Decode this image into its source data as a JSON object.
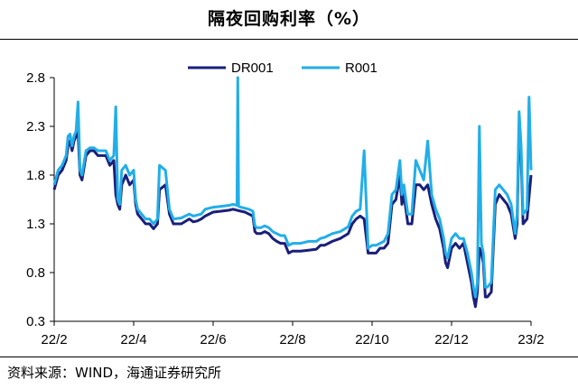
{
  "title": "隔夜回购利率（%）",
  "source": "资料来源：WIND，海通证券研究所",
  "colors": {
    "DR001": "#1a1f7a",
    "R001": "#22aee8"
  },
  "chart_data": {
    "type": "line",
    "title": "隔夜回购利率（%）",
    "xlabel": "",
    "ylabel": "",
    "ylim": [
      0.3,
      2.8
    ],
    "xlim": [
      0,
      12.0
    ],
    "yticks": [
      "0.3",
      "0.8",
      "1.3",
      "1.8",
      "2.3",
      "2.8"
    ],
    "xticks": [
      {
        "label": "22/2",
        "x": 0
      },
      {
        "label": "22/4",
        "x": 2
      },
      {
        "label": "22/6",
        "x": 4
      },
      {
        "label": "22/8",
        "x": 6
      },
      {
        "label": "22/10",
        "x": 8
      },
      {
        "label": "22/12",
        "x": 10
      },
      {
        "label": "23/2",
        "x": 12
      }
    ],
    "legend": [
      "DR001",
      "R001"
    ],
    "series": [
      {
        "name": "DR001",
        "color": "#1a1f7a",
        "points": [
          [
            0.0,
            1.65
          ],
          [
            0.1,
            1.8
          ],
          [
            0.2,
            1.85
          ],
          [
            0.3,
            1.95
          ],
          [
            0.35,
            2.1
          ],
          [
            0.4,
            2.15
          ],
          [
            0.45,
            2.05
          ],
          [
            0.5,
            2.15
          ],
          [
            0.55,
            2.2
          ],
          [
            0.6,
            2.25
          ],
          [
            0.65,
            1.8
          ],
          [
            0.7,
            1.75
          ],
          [
            0.8,
            2.0
          ],
          [
            0.9,
            2.05
          ],
          [
            1.0,
            2.05
          ],
          [
            1.1,
            2.0
          ],
          [
            1.2,
            2.0
          ],
          [
            1.3,
            2.0
          ],
          [
            1.4,
            1.9
          ],
          [
            1.5,
            1.95
          ],
          [
            1.55,
            1.6
          ],
          [
            1.6,
            1.5
          ],
          [
            1.65,
            1.45
          ],
          [
            1.7,
            1.7
          ],
          [
            1.8,
            1.8
          ],
          [
            1.9,
            1.7
          ],
          [
            2.0,
            1.75
          ],
          [
            2.05,
            1.5
          ],
          [
            2.1,
            1.4
          ],
          [
            2.2,
            1.35
          ],
          [
            2.3,
            1.3
          ],
          [
            2.4,
            1.3
          ],
          [
            2.5,
            1.25
          ],
          [
            2.6,
            1.3
          ],
          [
            2.65,
            1.65
          ],
          [
            2.8,
            1.7
          ],
          [
            2.9,
            1.4
          ],
          [
            3.0,
            1.3
          ],
          [
            3.2,
            1.3
          ],
          [
            3.4,
            1.35
          ],
          [
            3.5,
            1.32
          ],
          [
            3.6,
            1.33
          ],
          [
            3.7,
            1.35
          ],
          [
            3.8,
            1.38
          ],
          [
            4.0,
            1.42
          ],
          [
            4.2,
            1.43
          ],
          [
            4.4,
            1.44
          ],
          [
            4.5,
            1.45
          ],
          [
            4.6,
            1.44
          ],
          [
            4.7,
            1.43
          ],
          [
            4.8,
            1.42
          ],
          [
            4.9,
            1.4
          ],
          [
            5.0,
            1.38
          ],
          [
            5.05,
            1.22
          ],
          [
            5.1,
            1.2
          ],
          [
            5.2,
            1.2
          ],
          [
            5.3,
            1.22
          ],
          [
            5.4,
            1.2
          ],
          [
            5.5,
            1.15
          ],
          [
            5.6,
            1.12
          ],
          [
            5.7,
            1.1
          ],
          [
            5.8,
            1.1
          ],
          [
            5.9,
            1.0
          ],
          [
            6.0,
            1.02
          ],
          [
            6.2,
            1.02
          ],
          [
            6.4,
            1.03
          ],
          [
            6.6,
            1.04
          ],
          [
            6.7,
            1.08
          ],
          [
            6.8,
            1.08
          ],
          [
            6.9,
            1.1
          ],
          [
            7.0,
            1.12
          ],
          [
            7.2,
            1.15
          ],
          [
            7.4,
            1.2
          ],
          [
            7.5,
            1.3
          ],
          [
            7.6,
            1.35
          ],
          [
            7.7,
            1.38
          ],
          [
            7.8,
            1.35
          ],
          [
            7.9,
            1.0
          ],
          [
            8.0,
            1.0
          ],
          [
            8.1,
            1.0
          ],
          [
            8.2,
            1.05
          ],
          [
            8.3,
            1.05
          ],
          [
            8.4,
            1.1
          ],
          [
            8.5,
            1.5
          ],
          [
            8.6,
            1.55
          ],
          [
            8.7,
            1.8
          ],
          [
            8.75,
            1.5
          ],
          [
            8.8,
            1.6
          ],
          [
            8.9,
            1.3
          ],
          [
            9.0,
            1.3
          ],
          [
            9.1,
            1.7
          ],
          [
            9.2,
            1.7
          ],
          [
            9.3,
            1.65
          ],
          [
            9.4,
            1.7
          ],
          [
            9.5,
            1.5
          ],
          [
            9.6,
            1.35
          ],
          [
            9.7,
            1.25
          ],
          [
            9.8,
            1.05
          ],
          [
            9.85,
            0.9
          ],
          [
            9.9,
            0.85
          ],
          [
            10.0,
            1.05
          ],
          [
            10.1,
            1.1
          ],
          [
            10.2,
            1.05
          ],
          [
            10.3,
            1.1
          ],
          [
            10.4,
            0.9
          ],
          [
            10.5,
            0.7
          ],
          [
            10.55,
            0.55
          ],
          [
            10.6,
            0.45
          ],
          [
            10.65,
            0.6
          ],
          [
            10.7,
            1.05
          ],
          [
            10.75,
            1.0
          ],
          [
            10.8,
            0.9
          ],
          [
            10.85,
            0.55
          ],
          [
            10.9,
            0.55
          ],
          [
            11.0,
            0.6
          ],
          [
            11.1,
            1.5
          ],
          [
            11.2,
            1.6
          ],
          [
            11.3,
            1.55
          ],
          [
            11.4,
            1.5
          ],
          [
            11.5,
            1.4
          ],
          [
            11.6,
            1.15
          ],
          [
            11.65,
            1.3
          ],
          [
            11.7,
            2.3
          ],
          [
            11.75,
            2.0
          ],
          [
            11.8,
            1.3
          ],
          [
            11.9,
            1.35
          ],
          [
            12.0,
            1.8
          ]
        ]
      },
      {
        "name": "R001",
        "color": "#22aee8",
        "points": [
          [
            0.0,
            1.7
          ],
          [
            0.1,
            1.85
          ],
          [
            0.2,
            1.9
          ],
          [
            0.3,
            2.0
          ],
          [
            0.35,
            2.2
          ],
          [
            0.4,
            2.22
          ],
          [
            0.45,
            2.1
          ],
          [
            0.5,
            2.2
          ],
          [
            0.55,
            2.25
          ],
          [
            0.6,
            2.55
          ],
          [
            0.65,
            1.85
          ],
          [
            0.7,
            1.8
          ],
          [
            0.8,
            2.05
          ],
          [
            0.9,
            2.08
          ],
          [
            1.0,
            2.08
          ],
          [
            1.1,
            2.05
          ],
          [
            1.2,
            2.05
          ],
          [
            1.3,
            2.05
          ],
          [
            1.4,
            1.95
          ],
          [
            1.5,
            2.0
          ],
          [
            1.55,
            2.5
          ],
          [
            1.6,
            1.55
          ],
          [
            1.65,
            1.5
          ],
          [
            1.7,
            1.85
          ],
          [
            1.8,
            1.9
          ],
          [
            1.9,
            1.8
          ],
          [
            2.0,
            1.85
          ],
          [
            2.05,
            1.55
          ],
          [
            2.1,
            1.45
          ],
          [
            2.2,
            1.4
          ],
          [
            2.3,
            1.35
          ],
          [
            2.4,
            1.35
          ],
          [
            2.5,
            1.3
          ],
          [
            2.6,
            1.35
          ],
          [
            2.65,
            1.9
          ],
          [
            2.8,
            1.85
          ],
          [
            2.9,
            1.45
          ],
          [
            3.0,
            1.35
          ],
          [
            3.2,
            1.36
          ],
          [
            3.4,
            1.4
          ],
          [
            3.5,
            1.38
          ],
          [
            3.6,
            1.39
          ],
          [
            3.7,
            1.4
          ],
          [
            3.8,
            1.45
          ],
          [
            4.0,
            1.47
          ],
          [
            4.2,
            1.48
          ],
          [
            4.4,
            1.49
          ],
          [
            4.5,
            1.5
          ],
          [
            4.6,
            1.49
          ],
          [
            4.62,
            2.8
          ],
          [
            4.64,
            1.48
          ],
          [
            4.7,
            1.47
          ],
          [
            4.8,
            1.46
          ],
          [
            4.9,
            1.45
          ],
          [
            5.0,
            1.43
          ],
          [
            5.05,
            1.28
          ],
          [
            5.1,
            1.26
          ],
          [
            5.2,
            1.26
          ],
          [
            5.3,
            1.28
          ],
          [
            5.4,
            1.26
          ],
          [
            5.5,
            1.22
          ],
          [
            5.6,
            1.2
          ],
          [
            5.7,
            1.18
          ],
          [
            5.8,
            1.18
          ],
          [
            5.9,
            1.08
          ],
          [
            6.0,
            1.1
          ],
          [
            6.2,
            1.1
          ],
          [
            6.4,
            1.12
          ],
          [
            6.6,
            1.12
          ],
          [
            6.7,
            1.15
          ],
          [
            6.8,
            1.16
          ],
          [
            6.9,
            1.18
          ],
          [
            7.0,
            1.2
          ],
          [
            7.2,
            1.22
          ],
          [
            7.4,
            1.27
          ],
          [
            7.5,
            1.38
          ],
          [
            7.6,
            1.43
          ],
          [
            7.7,
            1.45
          ],
          [
            7.8,
            2.05
          ],
          [
            7.9,
            1.05
          ],
          [
            8.0,
            1.08
          ],
          [
            8.1,
            1.08
          ],
          [
            8.2,
            1.1
          ],
          [
            8.3,
            1.12
          ],
          [
            8.4,
            1.2
          ],
          [
            8.5,
            1.6
          ],
          [
            8.6,
            1.65
          ],
          [
            8.7,
            1.95
          ],
          [
            8.75,
            1.6
          ],
          [
            8.8,
            1.7
          ],
          [
            8.9,
            1.4
          ],
          [
            9.0,
            1.4
          ],
          [
            9.1,
            1.95
          ],
          [
            9.2,
            1.85
          ],
          [
            9.3,
            1.75
          ],
          [
            9.4,
            2.15
          ],
          [
            9.5,
            1.6
          ],
          [
            9.6,
            1.45
          ],
          [
            9.7,
            1.35
          ],
          [
            9.8,
            1.15
          ],
          [
            9.85,
            1.0
          ],
          [
            9.9,
            0.95
          ],
          [
            10.0,
            1.15
          ],
          [
            10.1,
            1.2
          ],
          [
            10.2,
            1.15
          ],
          [
            10.3,
            1.15
          ],
          [
            10.4,
            1.0
          ],
          [
            10.5,
            0.8
          ],
          [
            10.55,
            0.65
          ],
          [
            10.6,
            0.55
          ],
          [
            10.65,
            0.7
          ],
          [
            10.7,
            2.3
          ],
          [
            10.75,
            1.1
          ],
          [
            10.8,
            1.0
          ],
          [
            10.85,
            0.65
          ],
          [
            10.9,
            0.65
          ],
          [
            11.0,
            0.7
          ],
          [
            11.1,
            1.65
          ],
          [
            11.2,
            1.7
          ],
          [
            11.3,
            1.65
          ],
          [
            11.4,
            1.6
          ],
          [
            11.5,
            1.5
          ],
          [
            11.6,
            1.2
          ],
          [
            11.65,
            1.4
          ],
          [
            11.7,
            2.45
          ],
          [
            11.75,
            2.1
          ],
          [
            11.8,
            1.4
          ],
          [
            11.9,
            1.45
          ],
          [
            11.95,
            2.6
          ],
          [
            12.0,
            1.85
          ]
        ]
      }
    ]
  }
}
